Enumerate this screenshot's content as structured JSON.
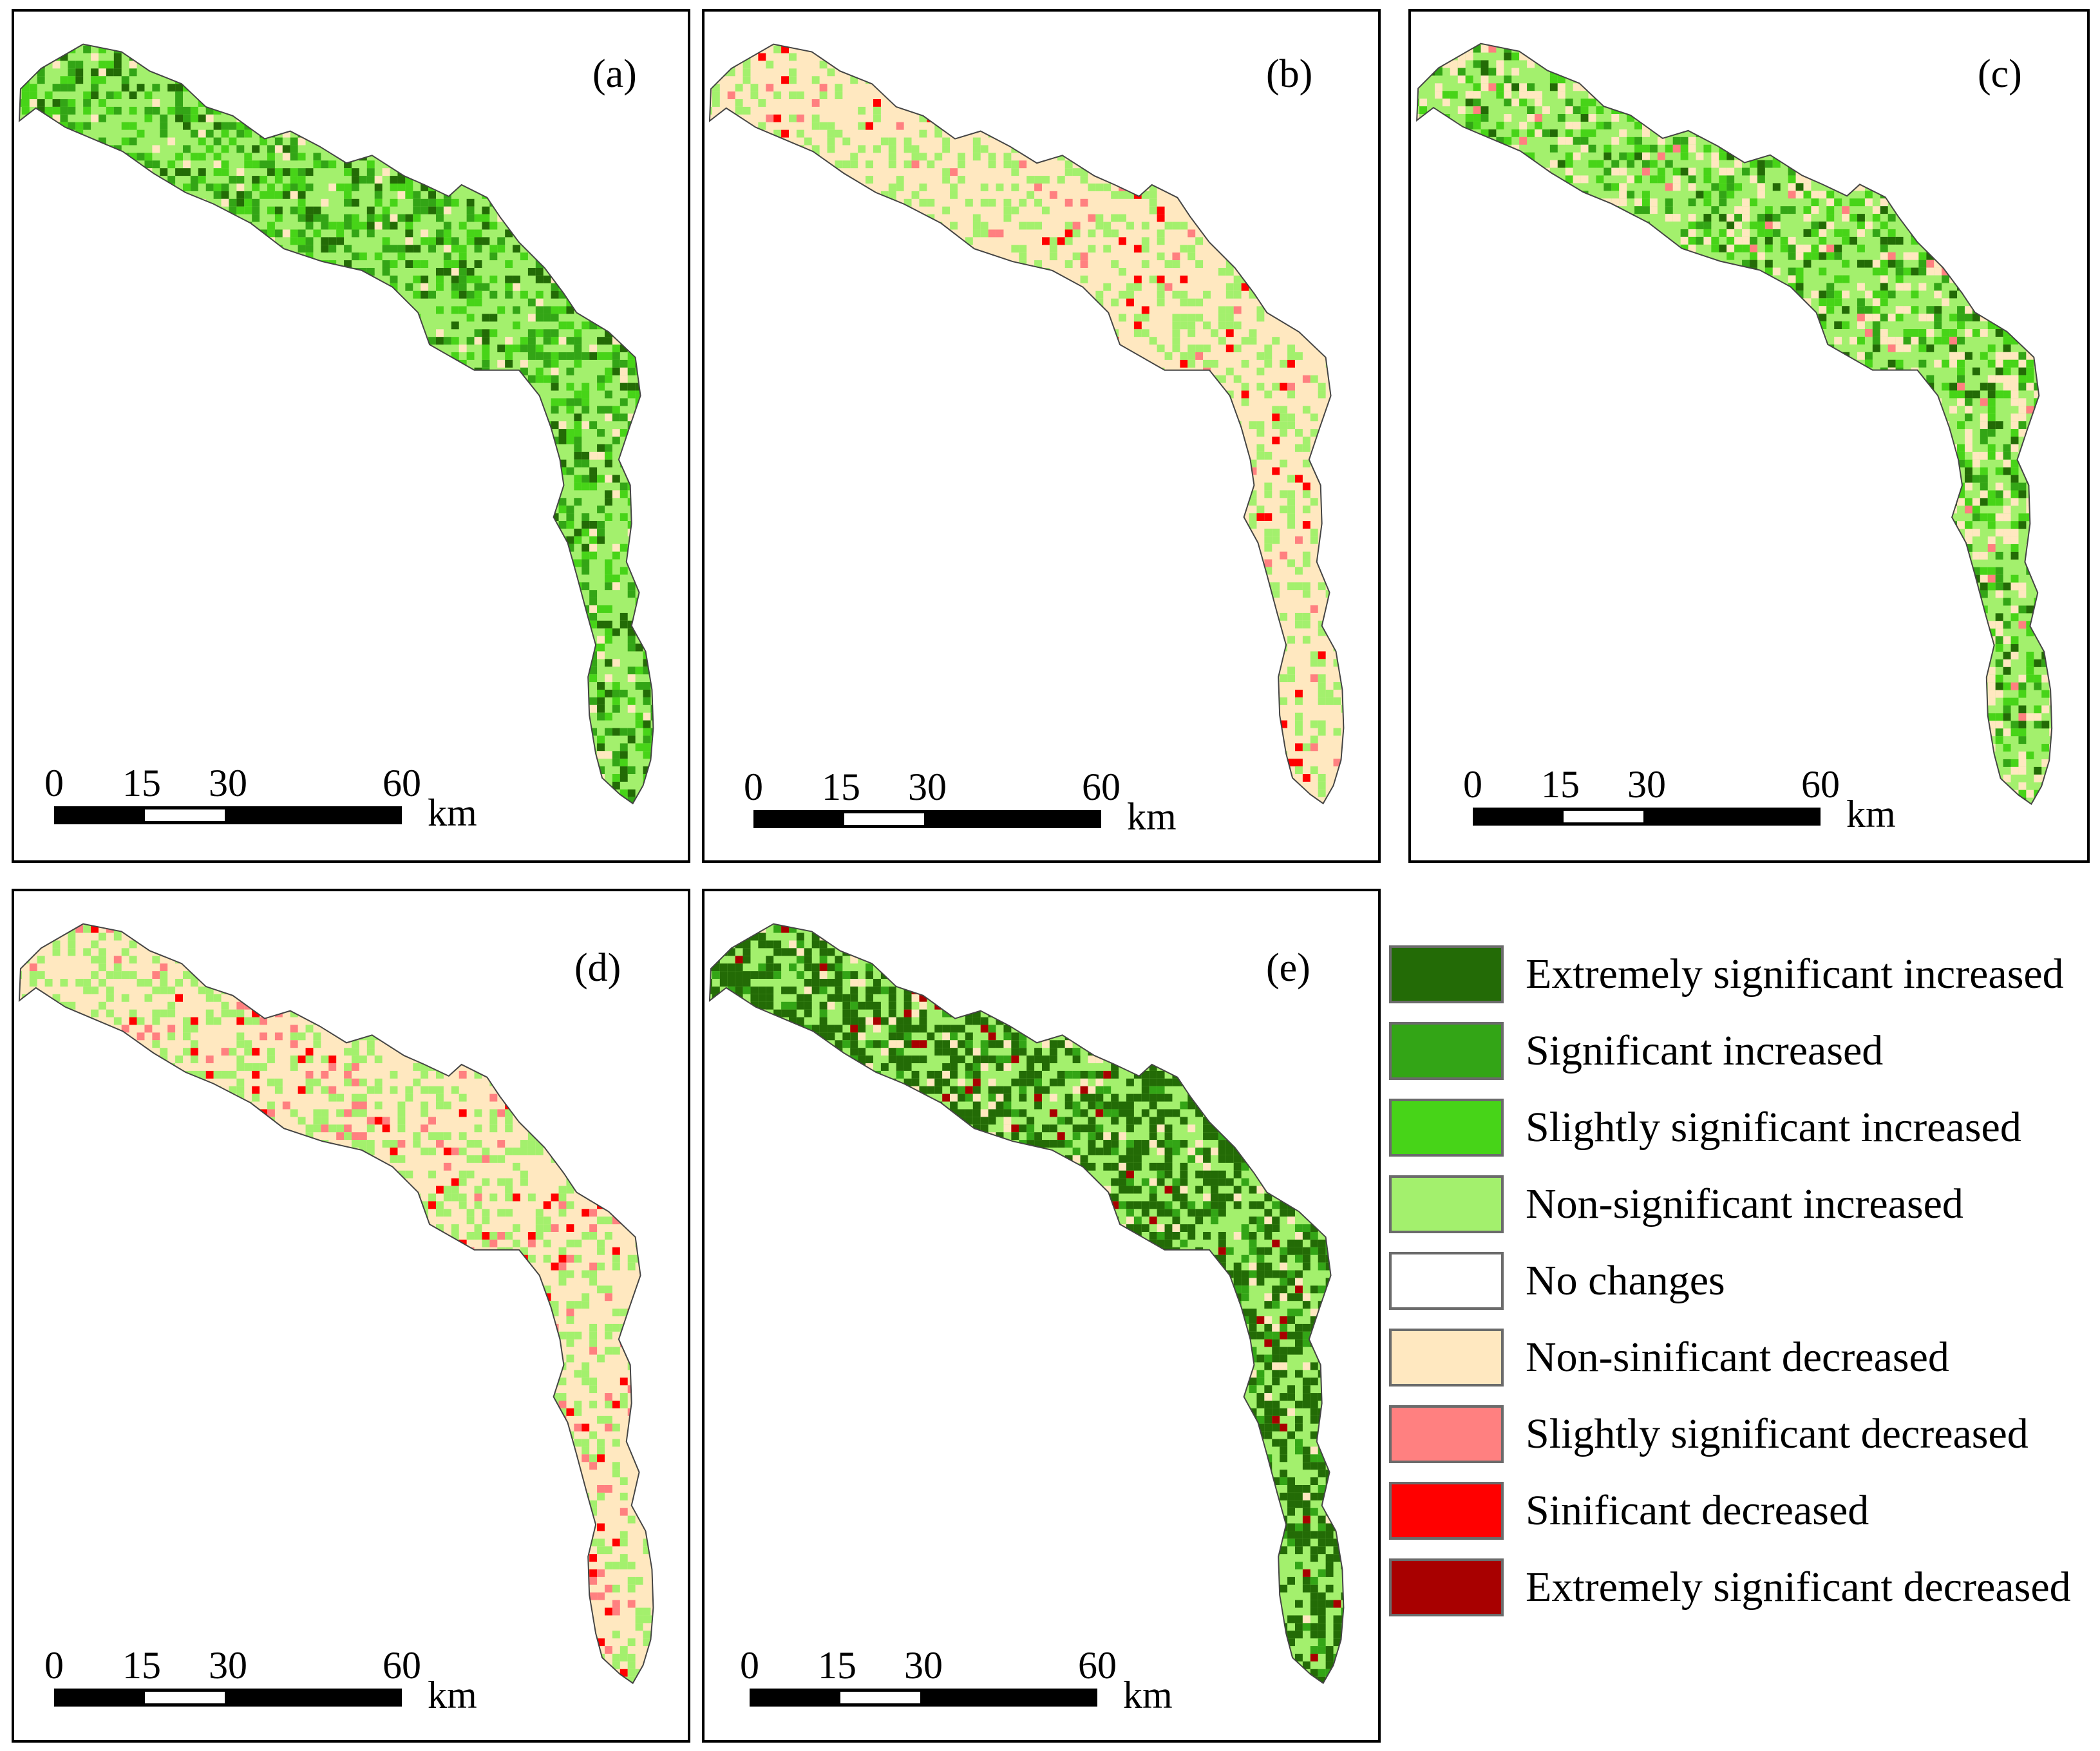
{
  "panels": [
    {
      "label": "(a)",
      "palette": [
        "#a3f06d",
        "#a3f06d",
        "#a3f06d",
        "#47d418",
        "#33a516",
        "#236b06",
        "#ffe8c0"
      ],
      "weights": [
        0.32,
        0.1,
        0.08,
        0.18,
        0.16,
        0.1,
        0.06
      ]
    },
    {
      "label": "(b)",
      "palette": [
        "#ffe8c0",
        "#ffe8c0",
        "#ffe8c0",
        "#a3f06d",
        "#a3f06d",
        "#ff8080",
        "#ff0000"
      ],
      "weights": [
        0.4,
        0.2,
        0.1,
        0.18,
        0.08,
        0.02,
        0.02
      ]
    },
    {
      "label": "(c)",
      "palette": [
        "#a3f06d",
        "#a3f06d",
        "#47d418",
        "#33a516",
        "#ffe8c0",
        "#236b06",
        "#ff8080"
      ],
      "weights": [
        0.34,
        0.14,
        0.16,
        0.1,
        0.18,
        0.06,
        0.02
      ]
    },
    {
      "label": "(d)",
      "palette": [
        "#ffe8c0",
        "#ffe8c0",
        "#ffe8c0",
        "#a3f06d",
        "#a3f06d",
        "#ff8080",
        "#ff0000"
      ],
      "weights": [
        0.36,
        0.2,
        0.1,
        0.18,
        0.08,
        0.05,
        0.03
      ]
    },
    {
      "label": "(e)",
      "palette": [
        "#a3f06d",
        "#a3f06d",
        "#236b06",
        "#236b06",
        "#33a516",
        "#ffe8c0",
        "#a80000"
      ],
      "weights": [
        0.3,
        0.12,
        0.26,
        0.14,
        0.1,
        0.06,
        0.02
      ]
    }
  ],
  "scale_bar": {
    "ticks": [
      "0",
      "15",
      "30",
      "60"
    ],
    "unit": "km"
  },
  "legend": {
    "items": [
      {
        "label": "Extremely significant increased",
        "color": "#236b06"
      },
      {
        "label": "Significant increased",
        "color": "#33a516"
      },
      {
        "label": "Slightly significant increased",
        "color": "#47d418"
      },
      {
        "label": "Non-significant increased",
        "color": "#a3f06d"
      },
      {
        "label": "No changes",
        "color": "#ffffff"
      },
      {
        "label": "Non-sinificant decreased",
        "color": "#ffe8c0"
      },
      {
        "label": "Slightly significant decreased",
        "color": "#ff8080"
      },
      {
        "label": "Sinificant decreased",
        "color": "#ff0000"
      },
      {
        "label": "Extremely significant decreased",
        "color": "#a80000"
      }
    ]
  }
}
